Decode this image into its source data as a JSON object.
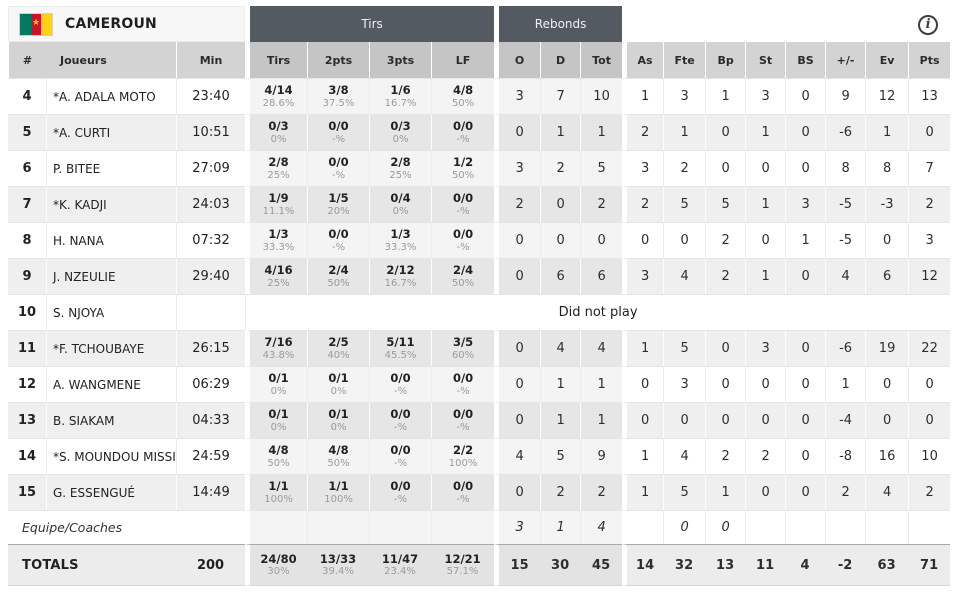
{
  "team": {
    "name": "CAMEROUN",
    "flag_colors": {
      "green": "#007a5e",
      "red": "#ce1126",
      "yellow": "#fcd116"
    }
  },
  "theme": {
    "group_header_bg": "#545a61",
    "col_header_bg": "#d3d3d3",
    "alt_row_bg": "#efefef"
  },
  "groups": {
    "tirs": "Tirs",
    "rebonds": "Rebonds"
  },
  "icons": {
    "info": "i"
  },
  "columns": [
    "#",
    "Joueurs",
    "Min",
    "Tirs",
    "2pts",
    "3pts",
    "LF",
    "O",
    "D",
    "Tot",
    "As",
    "Fte",
    "Bp",
    "St",
    "BS",
    "+/-",
    "Ev",
    "Pts"
  ],
  "labels": {
    "dnp": "Did not play"
  },
  "players": [
    {
      "num": "4",
      "name": "*A. ADALA MOTO",
      "min": "23:40",
      "shooting": [
        [
          "4/14",
          "28.6%"
        ],
        [
          "3/8",
          "37.5%"
        ],
        [
          "1/6",
          "16.7%"
        ],
        [
          "4/8",
          "50%"
        ]
      ],
      "stats": [
        "3",
        "7",
        "10",
        "1",
        "3",
        "1",
        "3",
        "0",
        "9",
        "12",
        "13"
      ]
    },
    {
      "num": "5",
      "name": "*A. CURTI",
      "min": "10:51",
      "shooting": [
        [
          "0/3",
          "0%"
        ],
        [
          "0/0",
          "-%"
        ],
        [
          "0/3",
          "0%"
        ],
        [
          "0/0",
          "-%"
        ]
      ],
      "stats": [
        "0",
        "1",
        "1",
        "2",
        "1",
        "0",
        "1",
        "0",
        "-6",
        "1",
        "0"
      ]
    },
    {
      "num": "6",
      "name": "P. BITEE",
      "min": "27:09",
      "shooting": [
        [
          "2/8",
          "25%"
        ],
        [
          "0/0",
          "-%"
        ],
        [
          "2/8",
          "25%"
        ],
        [
          "1/2",
          "50%"
        ]
      ],
      "stats": [
        "3",
        "2",
        "5",
        "3",
        "2",
        "0",
        "0",
        "0",
        "8",
        "8",
        "7"
      ]
    },
    {
      "num": "7",
      "name": "*K. KADJI",
      "min": "24:03",
      "shooting": [
        [
          "1/9",
          "11.1%"
        ],
        [
          "1/5",
          "20%"
        ],
        [
          "0/4",
          "0%"
        ],
        [
          "0/0",
          "-%"
        ]
      ],
      "stats": [
        "2",
        "0",
        "2",
        "2",
        "5",
        "5",
        "1",
        "3",
        "-5",
        "-3",
        "2"
      ]
    },
    {
      "num": "8",
      "name": "H. NANA",
      "min": "07:32",
      "shooting": [
        [
          "1/3",
          "33.3%"
        ],
        [
          "0/0",
          "-%"
        ],
        [
          "1/3",
          "33.3%"
        ],
        [
          "0/0",
          "-%"
        ]
      ],
      "stats": [
        "0",
        "0",
        "0",
        "0",
        "0",
        "2",
        "0",
        "1",
        "-5",
        "0",
        "3"
      ]
    },
    {
      "num": "9",
      "name": "J. NZEULIE",
      "min": "29:40",
      "shooting": [
        [
          "4/16",
          "25%"
        ],
        [
          "2/4",
          "50%"
        ],
        [
          "2/12",
          "16.7%"
        ],
        [
          "2/4",
          "50%"
        ]
      ],
      "stats": [
        "0",
        "6",
        "6",
        "3",
        "4",
        "2",
        "1",
        "0",
        "4",
        "6",
        "12"
      ]
    },
    {
      "num": "10",
      "name": "S. NJOYA",
      "min": "",
      "dnp": true
    },
    {
      "num": "11",
      "name": "*F. TCHOUBAYE",
      "min": "26:15",
      "shooting": [
        [
          "7/16",
          "43.8%"
        ],
        [
          "2/5",
          "40%"
        ],
        [
          "5/11",
          "45.5%"
        ],
        [
          "3/5",
          "60%"
        ]
      ],
      "stats": [
        "0",
        "4",
        "4",
        "1",
        "5",
        "0",
        "3",
        "0",
        "-6",
        "19",
        "22"
      ]
    },
    {
      "num": "12",
      "name": "A. WANGMENE",
      "min": "06:29",
      "shooting": [
        [
          "0/1",
          "0%"
        ],
        [
          "0/1",
          "0%"
        ],
        [
          "0/0",
          "-%"
        ],
        [
          "0/0",
          "-%"
        ]
      ],
      "stats": [
        "0",
        "1",
        "1",
        "0",
        "3",
        "0",
        "0",
        "0",
        "1",
        "0",
        "0"
      ]
    },
    {
      "num": "13",
      "name": "B. SIAKAM",
      "min": "04:33",
      "shooting": [
        [
          "0/1",
          "0%"
        ],
        [
          "0/1",
          "0%"
        ],
        [
          "0/0",
          "-%"
        ],
        [
          "0/0",
          "-%"
        ]
      ],
      "stats": [
        "0",
        "1",
        "1",
        "0",
        "0",
        "0",
        "0",
        "0",
        "-4",
        "0",
        "0"
      ]
    },
    {
      "num": "14",
      "name": "*S. MOUNDOU MISSI",
      "min": "24:59",
      "shooting": [
        [
          "4/8",
          "50%"
        ],
        [
          "4/8",
          "50%"
        ],
        [
          "0/0",
          "-%"
        ],
        [
          "2/2",
          "100%"
        ]
      ],
      "stats": [
        "4",
        "5",
        "9",
        "1",
        "4",
        "2",
        "2",
        "0",
        "-8",
        "16",
        "10"
      ]
    },
    {
      "num": "15",
      "name": "G. ESSENGUÉ",
      "min": "14:49",
      "shooting": [
        [
          "1/1",
          "100%"
        ],
        [
          "1/1",
          "100%"
        ],
        [
          "0/0",
          "-%"
        ],
        [
          "0/0",
          "-%"
        ]
      ],
      "stats": [
        "0",
        "2",
        "2",
        "1",
        "5",
        "1",
        "0",
        "0",
        "2",
        "4",
        "2"
      ]
    }
  ],
  "team_row": {
    "label": "Equipe/Coaches",
    "stats": [
      "3",
      "1",
      "4",
      "",
      "0",
      "0",
      "",
      "",
      "",
      "",
      ""
    ]
  },
  "totals": {
    "label": "TOTALS",
    "min": "200",
    "shooting": [
      [
        "24/80",
        "30%"
      ],
      [
        "13/33",
        "39.4%"
      ],
      [
        "11/47",
        "23.4%"
      ],
      [
        "12/21",
        "57.1%"
      ]
    ],
    "stats": [
      "15",
      "30",
      "45",
      "14",
      "32",
      "13",
      "11",
      "4",
      "-2",
      "63",
      "71"
    ]
  }
}
